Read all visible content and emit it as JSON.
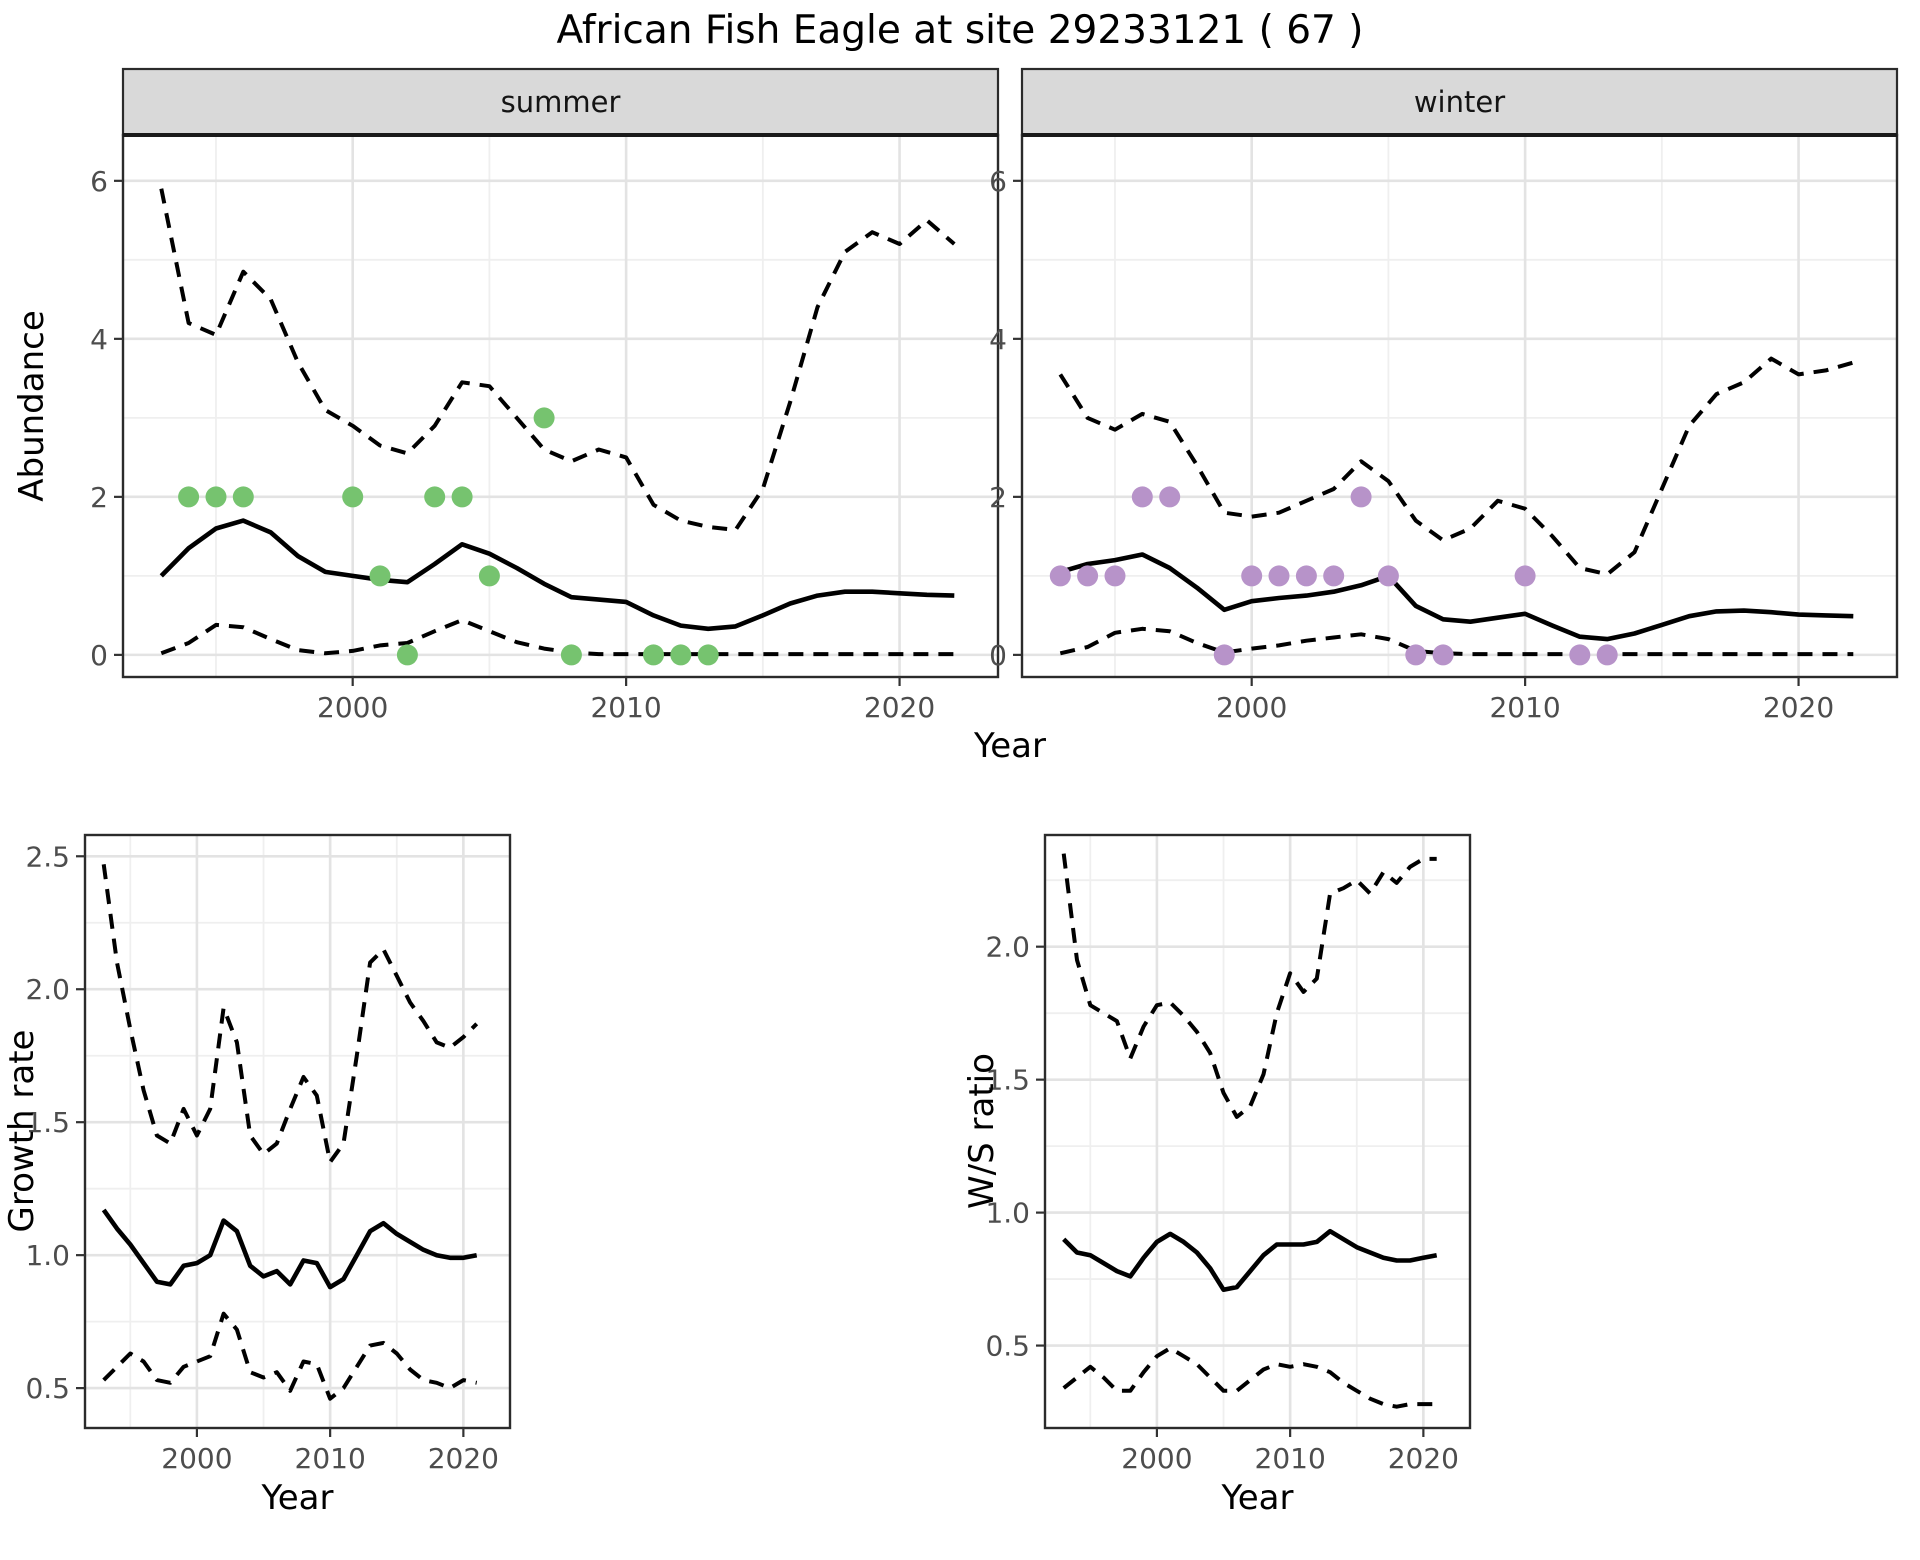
{
  "title": "African Fish Eagle at site 29233121 ( 67 )",
  "facets": [
    "summer",
    "winter"
  ],
  "axes": {
    "abundance_label": "Abundance",
    "year_label": "Year",
    "growth_label": "Growth rate",
    "ws_label": "W/S ratio"
  },
  "style": {
    "strip_fill": "#d9d9d9",
    "panel_border": "#2b2b2b",
    "grid_major": "#e3e3e3",
    "grid_minor": "#efefef",
    "line_color": "#000000",
    "tick_label_color": "#4d4d4d",
    "summer_point_color": "#76C36F",
    "winter_point_color": "#B793C9"
  },
  "chart_data": [
    {
      "id": "abundance-summer",
      "type": "line",
      "facet": "summer",
      "xlabel": "Year",
      "ylabel": "Abundance",
      "xlim": [
        1991.6,
        2023.6
      ],
      "ylim": [
        -0.28,
        6.58
      ],
      "xticks": [
        2000,
        2010,
        2020
      ],
      "xtick_labels": [
        "2000",
        "2010",
        "2020"
      ],
      "xticks_minor": [
        1995,
        2005,
        2015
      ],
      "yticks": [
        0,
        2,
        4,
        6
      ],
      "ytick_labels": [
        "0",
        "2",
        "4",
        "6"
      ],
      "yticks_minor": [
        1,
        3,
        5
      ],
      "years": [
        1993,
        1994,
        1995,
        1996,
        1997,
        1998,
        1999,
        2000,
        2001,
        2002,
        2003,
        2004,
        2005,
        2006,
        2007,
        2008,
        2009,
        2010,
        2011,
        2012,
        2013,
        2014,
        2015,
        2016,
        2017,
        2018,
        2019,
        2020,
        2021,
        2022
      ],
      "series": [
        {
          "name": "mean",
          "style": "solid",
          "values": [
            1.0,
            1.35,
            1.6,
            1.7,
            1.55,
            1.25,
            1.05,
            1.0,
            0.95,
            0.92,
            1.15,
            1.4,
            1.28,
            1.1,
            0.9,
            0.73,
            0.7,
            0.67,
            0.5,
            0.37,
            0.33,
            0.36,
            0.5,
            0.65,
            0.75,
            0.8,
            0.8,
            0.78,
            0.76,
            0.75
          ]
        },
        {
          "name": "upper_ci",
          "style": "dashed",
          "values": [
            5.9,
            4.2,
            4.05,
            4.85,
            4.5,
            3.7,
            3.1,
            2.9,
            2.65,
            2.55,
            2.9,
            3.45,
            3.4,
            3.0,
            2.6,
            2.45,
            2.6,
            2.5,
            1.9,
            1.7,
            1.62,
            1.58,
            2.1,
            3.2,
            4.4,
            5.1,
            5.35,
            5.2,
            5.5,
            5.2
          ]
        },
        {
          "name": "lower_ci",
          "style": "dashed",
          "values": [
            0.02,
            0.15,
            0.38,
            0.35,
            0.2,
            0.06,
            0.02,
            0.05,
            0.12,
            0.15,
            0.3,
            0.44,
            0.3,
            0.16,
            0.08,
            0.03,
            0.01,
            0.01,
            0.01,
            0.01,
            0.01,
            0.01,
            0.01,
            0.01,
            0.01,
            0.01,
            0.01,
            0.01,
            0.01,
            0.01
          ]
        }
      ],
      "points": {
        "color": "#76C36F",
        "data": [
          [
            1994,
            2
          ],
          [
            1995,
            2
          ],
          [
            1996,
            2
          ],
          [
            2000,
            2
          ],
          [
            2001,
            1
          ],
          [
            2002,
            0
          ],
          [
            2003,
            2
          ],
          [
            2004,
            2
          ],
          [
            2005,
            1
          ],
          [
            2007,
            3
          ],
          [
            2008,
            0
          ],
          [
            2011,
            0
          ],
          [
            2012,
            0
          ],
          [
            2013,
            0
          ]
        ]
      }
    },
    {
      "id": "abundance-winter",
      "type": "line",
      "facet": "winter",
      "xlabel": "Year",
      "ylabel": "Abundance",
      "xlim": [
        1991.6,
        2023.6
      ],
      "ylim": [
        -0.28,
        6.58
      ],
      "xticks": [
        2000,
        2010,
        2020
      ],
      "xtick_labels": [
        "2000",
        "2010",
        "2020"
      ],
      "xticks_minor": [
        1995,
        2005,
        2015
      ],
      "yticks": [
        0,
        2,
        4,
        6
      ],
      "ytick_labels": [
        "0",
        "2",
        "4",
        "6"
      ],
      "yticks_minor": [
        1,
        3,
        5
      ],
      "years": [
        1993,
        1994,
        1995,
        1996,
        1997,
        1998,
        1999,
        2000,
        2001,
        2002,
        2003,
        2004,
        2005,
        2006,
        2007,
        2008,
        2009,
        2010,
        2011,
        2012,
        2013,
        2014,
        2015,
        2016,
        2017,
        2018,
        2019,
        2020,
        2021,
        2022
      ],
      "series": [
        {
          "name": "mean",
          "style": "solid",
          "values": [
            1.05,
            1.15,
            1.2,
            1.27,
            1.1,
            0.85,
            0.57,
            0.68,
            0.72,
            0.75,
            0.8,
            0.88,
            1.0,
            0.62,
            0.45,
            0.42,
            0.47,
            0.52,
            0.37,
            0.23,
            0.2,
            0.27,
            0.38,
            0.49,
            0.55,
            0.56,
            0.54,
            0.51,
            0.5,
            0.49
          ]
        },
        {
          "name": "upper_ci",
          "style": "dashed",
          "values": [
            3.55,
            3.0,
            2.85,
            3.05,
            2.95,
            2.4,
            1.8,
            1.75,
            1.8,
            1.95,
            2.1,
            2.45,
            2.2,
            1.7,
            1.45,
            1.6,
            1.95,
            1.85,
            1.5,
            1.1,
            1.02,
            1.3,
            2.1,
            2.9,
            3.3,
            3.45,
            3.75,
            3.55,
            3.6,
            3.7
          ]
        },
        {
          "name": "lower_ci",
          "style": "dashed",
          "values": [
            0.02,
            0.1,
            0.28,
            0.33,
            0.3,
            0.15,
            0.03,
            0.08,
            0.12,
            0.18,
            0.22,
            0.26,
            0.2,
            0.05,
            0.02,
            0.01,
            0.01,
            0.01,
            0.01,
            0.01,
            0.01,
            0.01,
            0.01,
            0.01,
            0.01,
            0.01,
            0.01,
            0.01,
            0.01,
            0.01
          ]
        }
      ],
      "points": {
        "color": "#B793C9",
        "data": [
          [
            1993,
            1
          ],
          [
            1994,
            1
          ],
          [
            1995,
            1
          ],
          [
            1996,
            2
          ],
          [
            1997,
            2
          ],
          [
            1999,
            0
          ],
          [
            2000,
            1
          ],
          [
            2001,
            1
          ],
          [
            2002,
            1
          ],
          [
            2003,
            1
          ],
          [
            2004,
            2
          ],
          [
            2005,
            1
          ],
          [
            2006,
            0
          ],
          [
            2007,
            0
          ],
          [
            2010,
            1
          ],
          [
            2012,
            0
          ],
          [
            2013,
            0
          ]
        ]
      }
    },
    {
      "id": "growth-rate",
      "type": "line",
      "facet": null,
      "xlabel": "Year",
      "ylabel": "Growth rate",
      "xlim": [
        1991.6,
        2023.5
      ],
      "ylim": [
        0.35,
        2.58
      ],
      "xticks": [
        2000,
        2010,
        2020
      ],
      "xtick_labels": [
        "2000",
        "2010",
        "2020"
      ],
      "xticks_minor": [
        1995,
        2005,
        2015
      ],
      "yticks": [
        0.5,
        1.0,
        1.5,
        2.0,
        2.5
      ],
      "ytick_labels": [
        "0.5",
        "1.0",
        "1.5",
        "2.0",
        "2.5"
      ],
      "yticks_minor": [
        0.75,
        1.25,
        1.75,
        2.25
      ],
      "years": [
        1993,
        1994,
        1995,
        1996,
        1997,
        1998,
        1999,
        2000,
        2001,
        2002,
        2003,
        2004,
        2005,
        2006,
        2007,
        2008,
        2009,
        2010,
        2011,
        2012,
        2013,
        2014,
        2015,
        2016,
        2017,
        2018,
        2019,
        2020,
        2021
      ],
      "series": [
        {
          "name": "mean",
          "style": "solid",
          "values": [
            1.17,
            1.1,
            1.04,
            0.97,
            0.9,
            0.89,
            0.96,
            0.97,
            1.0,
            1.13,
            1.09,
            0.96,
            0.92,
            0.94,
            0.89,
            0.98,
            0.97,
            0.88,
            0.91,
            1.0,
            1.09,
            1.12,
            1.08,
            1.05,
            1.02,
            1.0,
            0.99,
            0.99,
            1.0
          ]
        },
        {
          "name": "upper_ci",
          "style": "dashed",
          "values": [
            2.47,
            2.1,
            1.85,
            1.62,
            1.45,
            1.42,
            1.55,
            1.45,
            1.55,
            1.93,
            1.8,
            1.45,
            1.38,
            1.42,
            1.55,
            1.67,
            1.6,
            1.35,
            1.42,
            1.75,
            2.1,
            2.15,
            2.05,
            1.95,
            1.88,
            1.8,
            1.78,
            1.82,
            1.87
          ]
        },
        {
          "name": "lower_ci",
          "style": "dashed",
          "values": [
            0.53,
            0.58,
            0.63,
            0.6,
            0.53,
            0.52,
            0.58,
            0.6,
            0.62,
            0.78,
            0.72,
            0.56,
            0.54,
            0.56,
            0.49,
            0.6,
            0.59,
            0.46,
            0.5,
            0.58,
            0.66,
            0.67,
            0.63,
            0.57,
            0.53,
            0.52,
            0.5,
            0.53,
            0.52
          ]
        }
      ],
      "points": null
    },
    {
      "id": "ws-ratio",
      "type": "line",
      "facet": null,
      "xlabel": "Year",
      "ylabel": "W/S ratio",
      "xlim": [
        1991.6,
        2023.5
      ],
      "ylim": [
        0.19,
        2.42
      ],
      "xticks": [
        2000,
        2010,
        2020
      ],
      "xtick_labels": [
        "2000",
        "2010",
        "2020"
      ],
      "xticks_minor": [
        1995,
        2005,
        2015
      ],
      "yticks": [
        0.5,
        1.0,
        1.5,
        2.0
      ],
      "ytick_labels": [
        "0.5",
        "1.0",
        "1.5",
        "2.0"
      ],
      "yticks_minor": [
        0.75,
        1.25,
        1.75,
        2.25
      ],
      "years": [
        1993,
        1994,
        1995,
        1996,
        1997,
        1998,
        1999,
        2000,
        2001,
        2002,
        2003,
        2004,
        2005,
        2006,
        2007,
        2008,
        2009,
        2010,
        2011,
        2012,
        2013,
        2014,
        2015,
        2016,
        2017,
        2018,
        2019,
        2020,
        2021
      ],
      "series": [
        {
          "name": "mean",
          "style": "solid",
          "values": [
            0.9,
            0.85,
            0.84,
            0.81,
            0.78,
            0.76,
            0.83,
            0.89,
            0.92,
            0.89,
            0.85,
            0.79,
            0.71,
            0.72,
            0.78,
            0.84,
            0.88,
            0.88,
            0.88,
            0.89,
            0.93,
            0.9,
            0.87,
            0.85,
            0.83,
            0.82,
            0.82,
            0.83,
            0.84
          ]
        },
        {
          "name": "upper_ci",
          "style": "dashed",
          "values": [
            2.35,
            1.95,
            1.78,
            1.75,
            1.72,
            1.58,
            1.7,
            1.78,
            1.79,
            1.74,
            1.68,
            1.6,
            1.45,
            1.36,
            1.4,
            1.52,
            1.75,
            1.9,
            1.83,
            1.88,
            2.2,
            2.22,
            2.25,
            2.2,
            2.28,
            2.24,
            2.3,
            2.33,
            2.33
          ]
        },
        {
          "name": "lower_ci",
          "style": "dashed",
          "values": [
            0.34,
            0.38,
            0.42,
            0.38,
            0.33,
            0.33,
            0.4,
            0.46,
            0.49,
            0.46,
            0.43,
            0.38,
            0.33,
            0.33,
            0.37,
            0.41,
            0.43,
            0.42,
            0.43,
            0.42,
            0.4,
            0.36,
            0.33,
            0.3,
            0.28,
            0.27,
            0.28,
            0.28,
            0.28
          ]
        }
      ],
      "points": null
    }
  ]
}
